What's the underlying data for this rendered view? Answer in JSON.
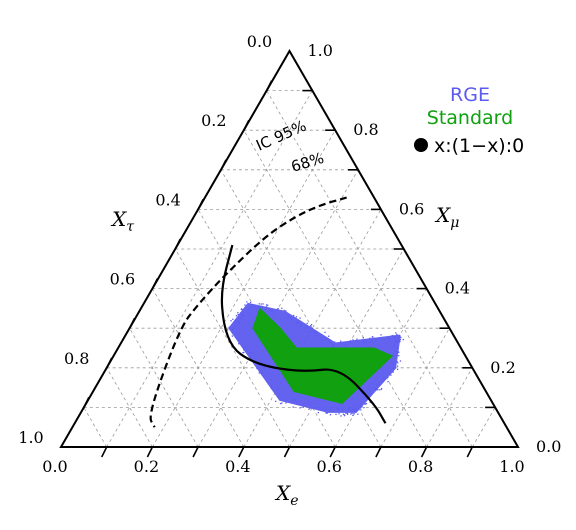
{
  "chart_data": {
    "type": "scatter",
    "subtype": "ternary",
    "axes": {
      "bottom": {
        "name": "X",
        "subscript": "e",
        "ticks": [
          "0.0",
          "0.2",
          "0.4",
          "0.6",
          "0.8",
          "1.0"
        ]
      },
      "right": {
        "name": "X",
        "subscript": "μ",
        "ticks": [
          "0.0",
          "0.2",
          "0.4",
          "0.6",
          "0.8",
          "1.0"
        ]
      },
      "left": {
        "name": "X",
        "subscript": "τ",
        "ticks": [
          "0.0",
          "0.2",
          "0.4",
          "0.6",
          "0.8",
          "1.0"
        ]
      }
    },
    "grid": true,
    "legend_position": "top-right",
    "legend": [
      {
        "label": "RGE",
        "color": "#5b5bf0"
      },
      {
        "label": "Standard",
        "color": "#10a010"
      },
      {
        "label": "x:(1−x):0",
        "color": "#000000",
        "marker": "filled-circle"
      }
    ],
    "contours": [
      {
        "label": "IC 95%",
        "style": "dashed",
        "points": [
          [
            0.31,
            0.63,
            0.06
          ],
          [
            0.26,
            0.61,
            0.13
          ],
          [
            0.22,
            0.58,
            0.2
          ],
          [
            0.18,
            0.53,
            0.29
          ],
          [
            0.14,
            0.43,
            0.43
          ],
          [
            0.12,
            0.36,
            0.52
          ],
          [
            0.11,
            0.3,
            0.59
          ],
          [
            0.15,
            0.08,
            0.77
          ],
          [
            0.18,
            0.05,
            0.77
          ]
        ]
      },
      {
        "label": "68%",
        "style": "solid",
        "points": [
          [
            0.12,
            0.51,
            0.37
          ],
          [
            0.15,
            0.4,
            0.45
          ],
          [
            0.2,
            0.31,
            0.49
          ],
          [
            0.25,
            0.25,
            0.5
          ],
          [
            0.3,
            0.22,
            0.48
          ],
          [
            0.36,
            0.2,
            0.44
          ],
          [
            0.44,
            0.19,
            0.37
          ],
          [
            0.51,
            0.2,
            0.29
          ],
          [
            0.63,
            0.11,
            0.26
          ],
          [
            0.68,
            0.06,
            0.26
          ]
        ]
      }
    ],
    "regions": [
      {
        "name": "RGE",
        "color": "#5b5bf0",
        "polygon": [
          [
            0.23,
            0.36,
            0.41
          ],
          [
            0.32,
            0.34,
            0.34
          ],
          [
            0.47,
            0.26,
            0.27
          ],
          [
            0.6,
            0.28,
            0.12
          ],
          [
            0.63,
            0.2,
            0.17
          ],
          [
            0.6,
            0.09,
            0.31
          ],
          [
            0.54,
            0.09,
            0.37
          ],
          [
            0.42,
            0.12,
            0.46
          ],
          [
            0.22,
            0.3,
            0.48
          ]
        ]
      },
      {
        "name": "Standard",
        "color": "#10a010",
        "polygon": [
          [
            0.26,
            0.35,
            0.39
          ],
          [
            0.33,
            0.3,
            0.37
          ],
          [
            0.39,
            0.25,
            0.36
          ],
          [
            0.56,
            0.25,
            0.19
          ],
          [
            0.61,
            0.23,
            0.16
          ],
          [
            0.56,
            0.11,
            0.33
          ],
          [
            0.44,
            0.14,
            0.42
          ],
          [
            0.27,
            0.3,
            0.43
          ]
        ]
      }
    ],
    "annotations": [
      "IC 95%",
      "68%"
    ]
  }
}
